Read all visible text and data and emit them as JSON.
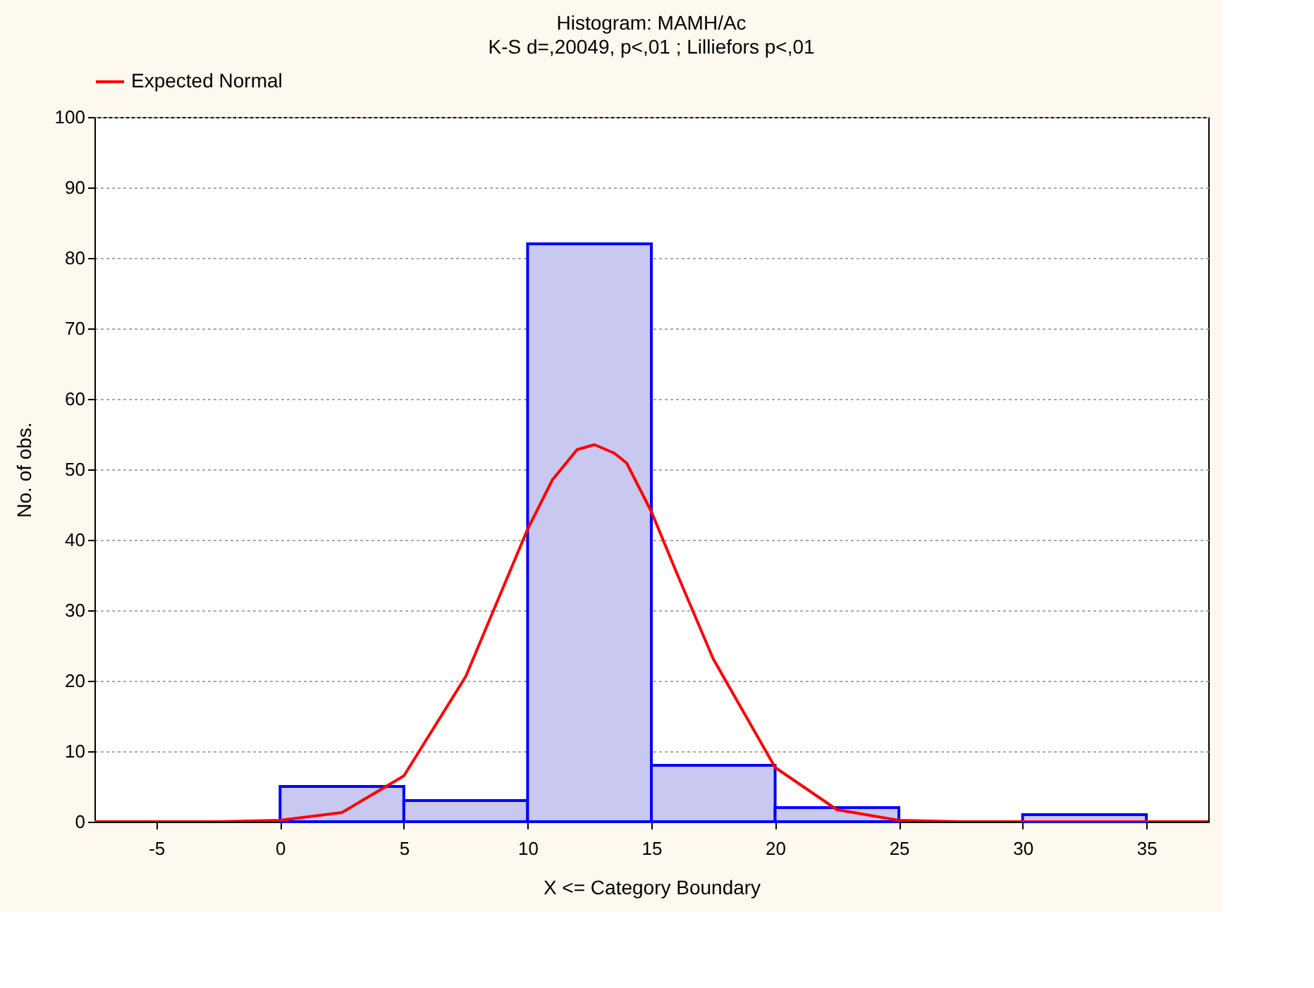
{
  "chart_data": {
    "type": "histogram",
    "title": "Histogram: MAMH/Ac",
    "subtitle": "K-S d=,20049, p<,01 ; Lilliefors p<,01",
    "xlabel": "X <= Category Boundary",
    "ylabel": "No. of obs.",
    "bins": [
      -5,
      0,
      5,
      10,
      15,
      20,
      25,
      30,
      35
    ],
    "values": [
      0,
      5,
      3,
      82,
      8,
      2,
      0,
      1
    ],
    "color": "#c8c8f0",
    "series": [
      {
        "name": "Expected Normal",
        "type": "line",
        "color": "#ff0000",
        "x": [
          -7.5,
          -5,
          -2.5,
          0,
          2.5,
          5,
          7.5,
          10,
          11,
          12,
          12.7,
          13.5,
          14,
          15,
          16,
          17.5,
          20,
          22.5,
          25,
          27.5,
          30,
          35,
          37.5
        ],
        "values": [
          0,
          0,
          0,
          0.2,
          1.3,
          6.5,
          20.6,
          41.5,
          48.5,
          52.8,
          53.5,
          52.3,
          50.9,
          44,
          35.5,
          23.1,
          7.7,
          1.7,
          0.2,
          0,
          0,
          0,
          0
        ]
      }
    ],
    "xlim": [
      -7.5,
      37.5
    ],
    "xticks": [
      -5,
      0,
      5,
      10,
      15,
      20,
      25,
      30,
      35
    ],
    "ylim": [
      0,
      100
    ],
    "yticks": [
      0,
      10,
      20,
      30,
      40,
      50,
      60,
      70,
      80,
      90,
      100
    ],
    "grid": "y",
    "legend": "top"
  }
}
